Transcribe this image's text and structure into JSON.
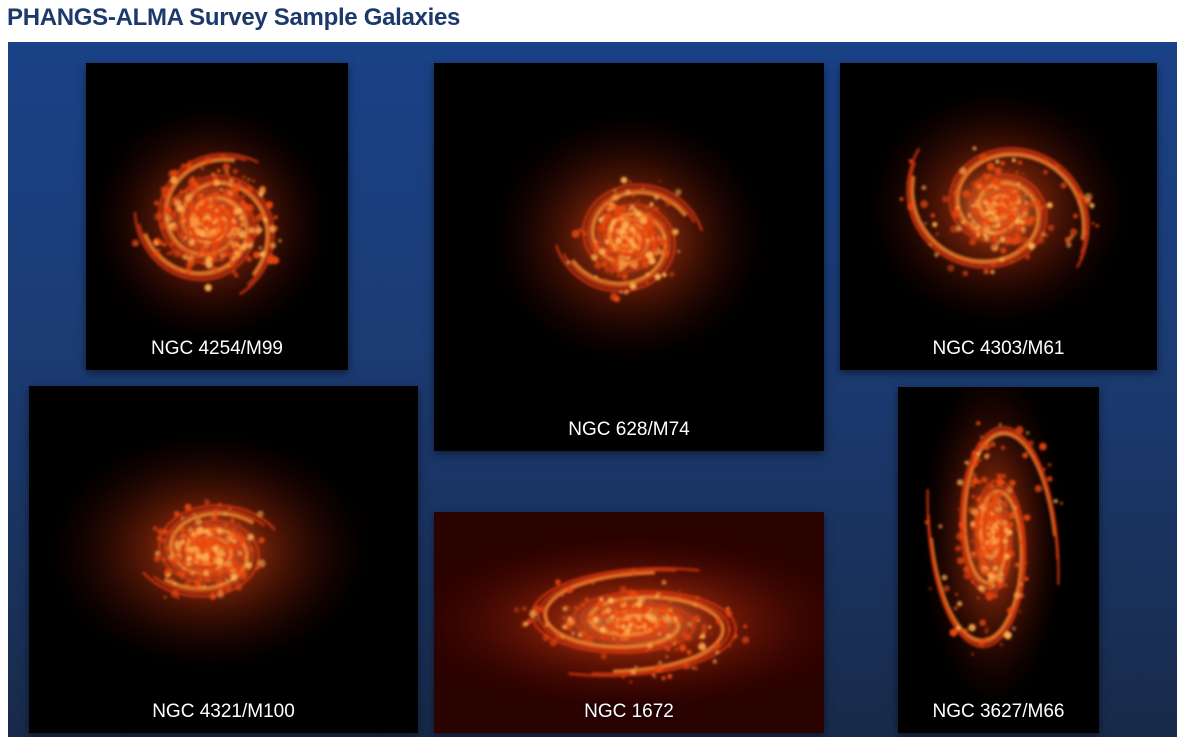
{
  "title": "PHANGS-ALMA Survey Sample Galaxies",
  "panels": [
    {
      "label": "NGC 4254/M99"
    },
    {
      "label": "NGC 628/M74"
    },
    {
      "label": "NGC 4303/M61"
    },
    {
      "label": "NGC 4321/M100"
    },
    {
      "label": "NGC 1672"
    },
    {
      "label": "NGC 3627/M66"
    }
  ]
}
